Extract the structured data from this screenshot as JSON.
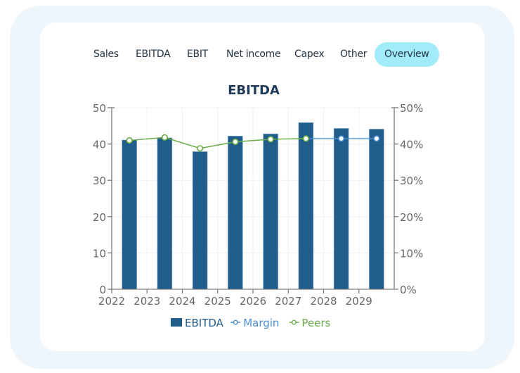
{
  "tabs": [
    {
      "label": "Sales",
      "active": false
    },
    {
      "label": "EBITDA",
      "active": false
    },
    {
      "label": "EBIT",
      "active": false
    },
    {
      "label": "Net income",
      "active": false
    },
    {
      "label": "Capex",
      "active": false
    },
    {
      "label": "Other",
      "active": false
    },
    {
      "label": "Overview",
      "active": true
    }
  ],
  "colors": {
    "bar": "#215d8b",
    "margin": "#4a90d0",
    "peers": "#6aad48",
    "title": "#1e3a56",
    "axis": "#7a7a7a",
    "tick_text": "#666666",
    "tab_active_bg": "#a2ecf9",
    "frame_bg": "#eef6fb"
  },
  "chart_data": {
    "type": "bar",
    "title": "EBITDA",
    "xlabel": "",
    "ylabel": "",
    "x_ticks": [
      "2022",
      "2023",
      "2024",
      "2025",
      "2026",
      "2027",
      "2028",
      "2029"
    ],
    "xlim": [
      2022,
      2030
    ],
    "ylim": [
      0,
      50
    ],
    "y_ticks": [
      "0",
      "10",
      "20",
      "30",
      "40",
      "50"
    ],
    "y2lim": [
      0,
      50
    ],
    "y2_ticks": [
      "0%",
      "10%",
      "20%",
      "30%",
      "40%",
      "50%"
    ],
    "grid": true,
    "legend_position": "bottom",
    "categories": [
      "2022",
      "2023",
      "2024",
      "2025",
      "2026",
      "2027",
      "2028",
      "2029"
    ],
    "series": [
      {
        "name": "EBITDA",
        "type": "bar",
        "axis": "left",
        "values": [
          41.1,
          41.7,
          37.9,
          42.2,
          42.8,
          45.9,
          44.3,
          44.1
        ]
      },
      {
        "name": "Margin",
        "type": "line",
        "axis": "right",
        "unit": "%",
        "values": [
          null,
          null,
          null,
          null,
          null,
          41.5,
          41.5,
          41.5
        ]
      },
      {
        "name": "Peers",
        "type": "line",
        "axis": "right",
        "unit": "%",
        "values": [
          41.0,
          41.8,
          38.8,
          40.6,
          41.3,
          41.5,
          null,
          null
        ]
      }
    ]
  }
}
